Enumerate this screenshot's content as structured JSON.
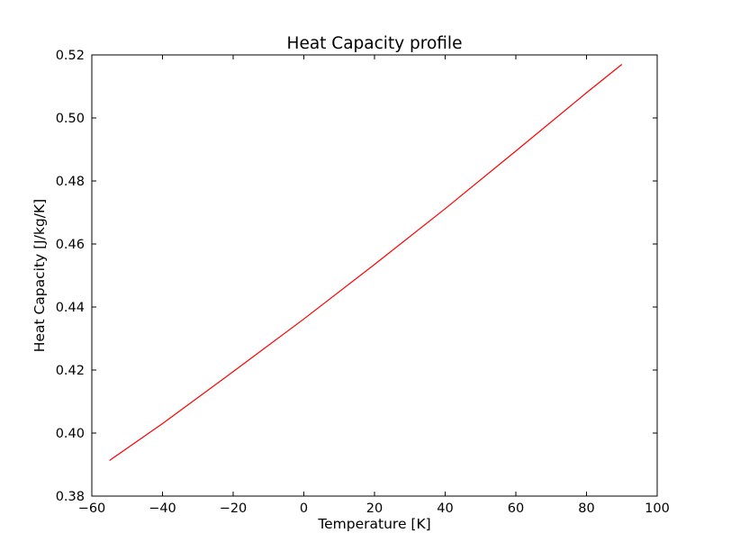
{
  "chart_data": {
    "type": "line",
    "title": "Heat Capacity profile",
    "xlabel": "Temperature [K]",
    "ylabel": "Heat Capacity [J/kg/K]",
    "xlim": [
      -60,
      100
    ],
    "ylim": [
      0.38,
      0.52
    ],
    "x_ticks": [
      -60,
      -40,
      -20,
      0,
      20,
      40,
      60,
      80,
      100
    ],
    "y_ticks": [
      0.38,
      0.4,
      0.42,
      0.44,
      0.46,
      0.48,
      0.5,
      0.52
    ],
    "x_tick_labels": [
      "−60",
      "−40",
      "−20",
      "0",
      "20",
      "40",
      "60",
      "80",
      "100"
    ],
    "y_tick_labels": [
      "0.38",
      "0.40",
      "0.42",
      "0.44",
      "0.46",
      "0.48",
      "0.50",
      "0.52"
    ],
    "grid": false,
    "series": [
      {
        "color": "#ff0000",
        "x": [
          -55,
          -40,
          -20,
          0,
          20,
          40,
          60,
          80,
          90
        ],
        "y": [
          0.3913,
          0.403,
          0.4195,
          0.4362,
          0.4535,
          0.4712,
          0.4895,
          0.508,
          0.517
        ]
      }
    ]
  }
}
